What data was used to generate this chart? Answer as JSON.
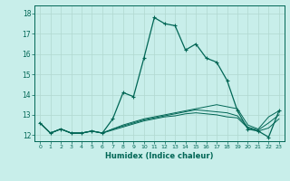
{
  "xlabel": "Humidex (Indice chaleur)",
  "background_color": "#c8eeea",
  "grid_color": "#b0d8d0",
  "line_color": "#006655",
  "xlim": [
    -0.5,
    23.5
  ],
  "ylim": [
    11.7,
    18.4
  ],
  "yticks": [
    12,
    13,
    14,
    15,
    16,
    17,
    18
  ],
  "xticks": [
    0,
    1,
    2,
    3,
    4,
    5,
    6,
    7,
    8,
    9,
    10,
    11,
    12,
    13,
    14,
    15,
    16,
    17,
    18,
    19,
    20,
    21,
    22,
    23
  ],
  "xtick_labels": [
    "0",
    "1",
    "2",
    "3",
    "4",
    "5",
    "6",
    "7",
    "8",
    "9",
    "10",
    "11",
    "12",
    "13",
    "14",
    "15",
    "16",
    "17",
    "18",
    "19",
    "20",
    "21",
    "22",
    "23"
  ],
  "series_main": [
    12.6,
    12.1,
    12.3,
    12.1,
    12.1,
    12.2,
    12.1,
    12.8,
    14.1,
    13.9,
    15.8,
    17.8,
    17.5,
    17.4,
    16.2,
    16.5,
    15.8,
    15.6,
    14.7,
    13.2,
    12.3,
    12.2,
    11.9,
    13.2
  ],
  "series_flat": [
    [
      12.6,
      12.1,
      12.3,
      12.1,
      12.1,
      12.2,
      12.1,
      12.3,
      12.5,
      12.65,
      12.8,
      12.9,
      13.0,
      13.1,
      13.2,
      13.3,
      13.4,
      13.5,
      13.4,
      13.3,
      12.5,
      12.3,
      12.9,
      13.2
    ],
    [
      12.6,
      12.1,
      12.3,
      12.1,
      12.1,
      12.2,
      12.1,
      12.3,
      12.45,
      12.6,
      12.75,
      12.85,
      12.95,
      13.05,
      13.15,
      13.25,
      13.2,
      13.15,
      13.1,
      12.95,
      12.4,
      12.25,
      12.6,
      13.0
    ],
    [
      12.6,
      12.1,
      12.3,
      12.1,
      12.1,
      12.2,
      12.1,
      12.25,
      12.4,
      12.55,
      12.7,
      12.8,
      12.9,
      12.95,
      13.05,
      13.1,
      13.05,
      13.0,
      12.9,
      12.85,
      12.35,
      12.2,
      12.35,
      12.8
    ]
  ]
}
